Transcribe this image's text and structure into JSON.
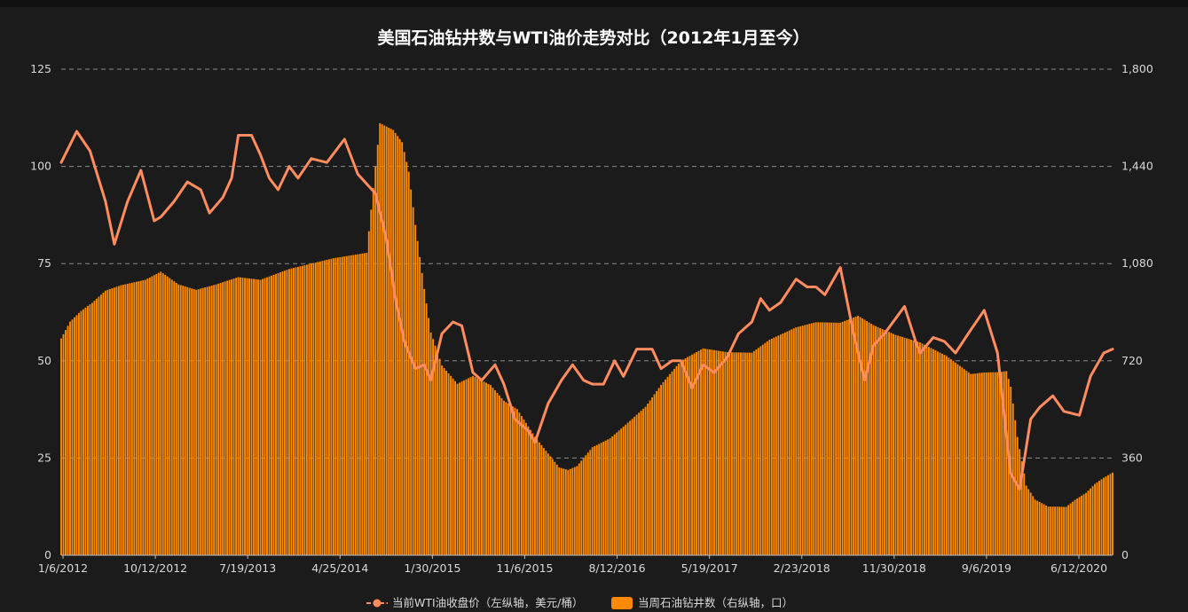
{
  "chart_data": {
    "type": "bar+line",
    "title": "美国石油钻井数与WTI油价走势对比（2012年1月至今）",
    "x_tick_labels": [
      "1/6/2012",
      "10/12/2012",
      "7/19/2013",
      "4/25/2014",
      "1/30/2015",
      "11/6/2015",
      "8/12/2016",
      "5/19/2017",
      "2/23/2018",
      "11/30/2018",
      "9/6/2019",
      "6/12/2020"
    ],
    "x_range": [
      "2012-01-06",
      "2021-02-12"
    ],
    "y_left": {
      "label": "",
      "range": [
        0,
        125
      ],
      "ticks": [
        "0",
        "25",
        "50",
        "75",
        "100",
        "125"
      ]
    },
    "y_right": {
      "label": "",
      "range": [
        0,
        1800
      ],
      "ticks": [
        "0",
        "360",
        "720",
        "1,080",
        "1,440",
        "1,800"
      ]
    },
    "grid": "horizontal dashed",
    "legend_position": "bottom-center",
    "colors": {
      "background": "#1b1b1b",
      "line": "#ff8c5e",
      "bar": "#ff8a00",
      "grid": "#8c8c8c",
      "text": "#d8d8d8"
    },
    "series": [
      {
        "name": "当前WTI油收盘价（左纵轴，美元/桶）",
        "type": "line",
        "axis": "left",
        "points": [
          [
            "2012-01-06",
            101
          ],
          [
            "2012-02-24",
            109
          ],
          [
            "2012-04-06",
            104
          ],
          [
            "2012-05-25",
            91
          ],
          [
            "2012-06-22",
            80
          ],
          [
            "2012-08-03",
            91
          ],
          [
            "2012-09-14",
            99
          ],
          [
            "2012-10-26",
            86
          ],
          [
            "2012-11-16",
            87
          ],
          [
            "2012-12-28",
            91
          ],
          [
            "2013-02-08",
            96
          ],
          [
            "2013-03-22",
            94
          ],
          [
            "2013-04-19",
            88
          ],
          [
            "2013-05-31",
            92
          ],
          [
            "2013-06-28",
            97
          ],
          [
            "2013-07-19",
            108
          ],
          [
            "2013-08-30",
            108
          ],
          [
            "2013-09-27",
            103
          ],
          [
            "2013-10-25",
            97
          ],
          [
            "2013-11-22",
            94
          ],
          [
            "2013-12-27",
            100
          ],
          [
            "2014-01-24",
            97
          ],
          [
            "2014-03-07",
            102
          ],
          [
            "2014-04-25",
            101
          ],
          [
            "2014-06-20",
            107
          ],
          [
            "2014-08-01",
            98
          ],
          [
            "2014-09-26",
            93
          ],
          [
            "2014-10-31",
            81
          ],
          [
            "2014-11-28",
            66
          ],
          [
            "2014-12-26",
            55
          ],
          [
            "2015-01-30",
            48
          ],
          [
            "2015-02-27",
            49
          ],
          [
            "2015-03-20",
            45
          ],
          [
            "2015-04-24",
            57
          ],
          [
            "2015-05-29",
            60
          ],
          [
            "2015-06-26",
            59
          ],
          [
            "2015-07-31",
            47
          ],
          [
            "2015-08-28",
            45
          ],
          [
            "2015-10-09",
            49
          ],
          [
            "2015-11-06",
            44
          ],
          [
            "2015-12-11",
            35
          ],
          [
            "2016-01-22",
            32
          ],
          [
            "2016-02-12",
            29
          ],
          [
            "2016-03-25",
            39
          ],
          [
            "2016-05-06",
            45
          ],
          [
            "2016-06-10",
            49
          ],
          [
            "2016-07-15",
            45
          ],
          [
            "2016-08-12",
            44
          ],
          [
            "2016-09-16",
            44
          ],
          [
            "2016-10-21",
            50
          ],
          [
            "2016-11-18",
            46
          ],
          [
            "2016-12-30",
            53
          ],
          [
            "2017-02-17",
            53
          ],
          [
            "2017-03-17",
            48
          ],
          [
            "2017-04-21",
            50
          ],
          [
            "2017-05-19",
            50
          ],
          [
            "2017-06-23",
            43
          ],
          [
            "2017-07-28",
            49
          ],
          [
            "2017-09-01",
            47
          ],
          [
            "2017-10-13",
            51
          ],
          [
            "2017-11-17",
            57
          ],
          [
            "2017-12-29",
            60
          ],
          [
            "2018-01-26",
            66
          ],
          [
            "2018-02-23",
            63
          ],
          [
            "2018-03-30",
            65
          ],
          [
            "2018-05-18",
            71
          ],
          [
            "2018-06-22",
            69
          ],
          [
            "2018-07-20",
            69
          ],
          [
            "2018-08-17",
            67
          ],
          [
            "2018-10-05",
            74
          ],
          [
            "2018-11-16",
            57
          ],
          [
            "2018-12-21",
            45
          ],
          [
            "2019-01-18",
            54
          ],
          [
            "2019-02-22",
            57
          ],
          [
            "2019-04-26",
            64
          ],
          [
            "2019-05-31",
            55
          ],
          [
            "2019-06-14",
            52
          ],
          [
            "2019-07-26",
            56
          ],
          [
            "2019-08-30",
            55
          ],
          [
            "2019-10-04",
            52
          ],
          [
            "2019-11-22",
            58
          ],
          [
            "2020-01-03",
            63
          ],
          [
            "2020-02-14",
            52
          ],
          [
            "2020-03-13",
            31
          ],
          [
            "2020-03-27",
            21
          ],
          [
            "2020-04-24",
            17
          ],
          [
            "2020-05-29",
            35
          ],
          [
            "2020-06-26",
            38
          ],
          [
            "2020-08-07",
            41
          ],
          [
            "2020-09-11",
            37
          ],
          [
            "2020-10-30",
            36
          ],
          [
            "2020-12-04",
            46
          ],
          [
            "2021-01-15",
            52
          ],
          [
            "2021-02-12",
            53
          ]
        ]
      },
      {
        "name": "当周石油钻井数（右纵轴，口）",
        "type": "bar",
        "axis": "right",
        "points": [
          [
            "2012-01-06",
            803
          ],
          [
            "2012-02-03",
            865
          ],
          [
            "2012-03-09",
            905
          ],
          [
            "2012-04-13",
            935
          ],
          [
            "2012-05-25",
            980
          ],
          [
            "2012-07-13",
            1000
          ],
          [
            "2012-09-28",
            1020
          ],
          [
            "2012-11-16",
            1050
          ],
          [
            "2013-01-11",
            1003
          ],
          [
            "2013-03-08",
            983
          ],
          [
            "2013-05-10",
            1003
          ],
          [
            "2013-07-19",
            1030
          ],
          [
            "2013-09-27",
            1020
          ],
          [
            "2013-12-27",
            1060
          ],
          [
            "2014-03-07",
            1080
          ],
          [
            "2014-05-16",
            1100
          ],
          [
            "2014-08-29",
            1120
          ],
          [
            "2014-10-10",
            1600
          ],
          [
            "2014-11-21",
            1575
          ],
          [
            "2014-12-19",
            1530
          ],
          [
            "2015-01-09",
            1420
          ],
          [
            "2015-01-30",
            1223
          ],
          [
            "2015-02-27",
            986
          ],
          [
            "2015-03-20",
            825
          ],
          [
            "2015-04-24",
            703
          ],
          [
            "2015-06-12",
            635
          ],
          [
            "2015-07-31",
            664
          ],
          [
            "2015-09-25",
            630
          ],
          [
            "2015-11-06",
            572
          ],
          [
            "2015-12-18",
            541
          ],
          [
            "2016-02-12",
            439
          ],
          [
            "2016-03-18",
            387
          ],
          [
            "2016-04-29",
            325
          ],
          [
            "2016-05-27",
            316
          ],
          [
            "2016-06-24",
            330
          ],
          [
            "2016-08-12",
            400
          ],
          [
            "2016-10-07",
            433
          ],
          [
            "2016-12-09",
            498
          ],
          [
            "2017-01-27",
            550
          ],
          [
            "2017-03-17",
            631
          ],
          [
            "2017-05-19",
            720
          ],
          [
            "2017-07-28",
            766
          ],
          [
            "2017-10-13",
            752
          ],
          [
            "2017-12-29",
            750
          ],
          [
            "2018-02-23",
            798
          ],
          [
            "2018-05-18",
            844
          ],
          [
            "2018-07-20",
            863
          ],
          [
            "2018-10-05",
            861
          ],
          [
            "2018-11-30",
            887
          ],
          [
            "2019-01-18",
            852
          ],
          [
            "2019-03-29",
            816
          ],
          [
            "2019-06-14",
            788
          ],
          [
            "2019-09-06",
            738
          ],
          [
            "2019-11-22",
            671
          ],
          [
            "2020-01-03",
            677
          ],
          [
            "2020-02-14",
            678
          ],
          [
            "2020-03-13",
            682
          ],
          [
            "2020-03-27",
            624
          ],
          [
            "2020-04-17",
            438
          ],
          [
            "2020-05-15",
            258
          ],
          [
            "2020-06-12",
            206
          ],
          [
            "2020-07-24",
            180
          ],
          [
            "2020-08-21",
            180
          ],
          [
            "2020-09-18",
            179
          ],
          [
            "2020-10-16",
            205
          ],
          [
            "2020-11-20",
            231
          ],
          [
            "2020-12-18",
            264
          ],
          [
            "2021-01-15",
            287
          ],
          [
            "2021-02-12",
            306
          ]
        ]
      }
    ]
  }
}
